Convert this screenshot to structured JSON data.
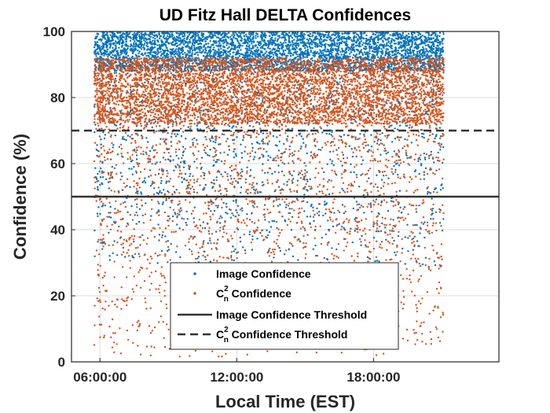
{
  "chart_data": {
    "type": "scatter",
    "title": "UD Fitz Hall DELTA Confidences",
    "xlabel": "Local Time (EST)",
    "ylabel": "Confidence (%)",
    "xlim": [
      "04:45:00",
      "23:30:00"
    ],
    "ylim": [
      0,
      100
    ],
    "x_ticks": [
      "06:00:00",
      "12:00:00",
      "18:00:00"
    ],
    "y_ticks": [
      0,
      20,
      40,
      60,
      80,
      100
    ],
    "grid": true,
    "legend_position": "bottom-center",
    "series": [
      {
        "name": "Image Confidence",
        "color": "#0072BD",
        "marker": "dot",
        "time_range": [
          "05:45:00",
          "21:05:00"
        ],
        "dense_band": [
          88,
          100
        ],
        "sparse_band": [
          28,
          88
        ],
        "sample_points": [
          {
            "x": "06:00:00",
            "y": 95
          },
          {
            "x": "07:00:00",
            "y": 62
          },
          {
            "x": "08:00:00",
            "y": 48
          },
          {
            "x": "09:00:00",
            "y": 71
          },
          {
            "x": "10:00:00",
            "y": 38
          },
          {
            "x": "11:00:00",
            "y": 55
          },
          {
            "x": "12:00:00",
            "y": 33
          },
          {
            "x": "13:00:00",
            "y": 66
          },
          {
            "x": "14:00:00",
            "y": 44
          },
          {
            "x": "15:00:00",
            "y": 58
          },
          {
            "x": "16:00:00",
            "y": 36
          },
          {
            "x": "17:00:00",
            "y": 74
          },
          {
            "x": "18:00:00",
            "y": 41
          },
          {
            "x": "19:00:00",
            "y": 63
          },
          {
            "x": "20:00:00",
            "y": 35
          },
          {
            "x": "21:00:00",
            "y": 97
          }
        ]
      },
      {
        "name": "C_n^2 Confidence",
        "color": "#D95319",
        "marker": "dot",
        "time_range": [
          "05:45:00",
          "21:05:00"
        ],
        "dense_band": [
          72,
          92
        ],
        "sparse_band": [
          1,
          72
        ],
        "sample_points": [
          {
            "x": "06:00:00",
            "y": 84
          },
          {
            "x": "07:00:00",
            "y": 52
          },
          {
            "x": "08:00:00",
            "y": 18
          },
          {
            "x": "09:00:00",
            "y": 76
          },
          {
            "x": "10:00:00",
            "y": 9
          },
          {
            "x": "11:00:00",
            "y": 61
          },
          {
            "x": "12:00:00",
            "y": 27
          },
          {
            "x": "13:00:00",
            "y": 88
          },
          {
            "x": "14:00:00",
            "y": 14
          },
          {
            "x": "15:00:00",
            "y": 57
          },
          {
            "x": "16:00:00",
            "y": 22
          },
          {
            "x": "17:00:00",
            "y": 80
          },
          {
            "x": "18:00:00",
            "y": 12
          },
          {
            "x": "19:00:00",
            "y": 49
          },
          {
            "x": "20:00:00",
            "y": 25
          },
          {
            "x": "21:00:00",
            "y": 86
          }
        ]
      }
    ],
    "thresholds": [
      {
        "name": "Image Confidence Threshold",
        "value": 50,
        "style": "solid",
        "color": "#333333"
      },
      {
        "name": "C_n^2 Confidence Threshold",
        "value": 70,
        "style": "dashed",
        "color": "#333333"
      }
    ]
  },
  "legend": {
    "image_confidence": "Image Confidence",
    "cn2_confidence": {
      "base": "C",
      "sup": "2",
      "sub": "n",
      "rest": " Confidence"
    },
    "image_threshold": "Image Confidence Threshold",
    "cn2_threshold": {
      "base": "C",
      "sup": "2",
      "sub": "n",
      "rest": " Confidence Threshold"
    }
  }
}
